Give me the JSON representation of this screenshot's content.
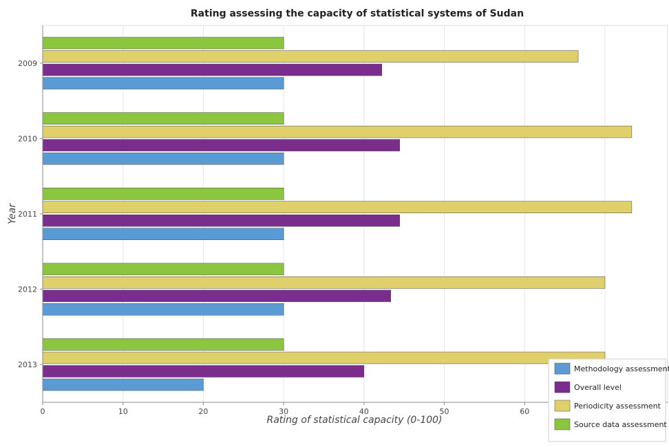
{
  "chart_data": {
    "type": "bar",
    "orientation": "horizontal",
    "title": "Rating assessing the capacity of statistical systems of Sudan",
    "xlabel": "Rating of statistical capacity (0-100)",
    "ylabel": "Year",
    "categories": [
      "2009",
      "2010",
      "2011",
      "2012",
      "2013"
    ],
    "xlim": [
      0,
      77.8
    ],
    "xticks": [
      0,
      10,
      20,
      30,
      40,
      50,
      60,
      70
    ],
    "grid": true,
    "legend_position": "bottom-right",
    "series": [
      {
        "name": "Methodology assessment",
        "color": "#5b9bd5",
        "values": [
          30,
          30,
          30,
          30,
          20
        ]
      },
      {
        "name": "Overall level",
        "color": "#7b2d8e",
        "values": [
          42.2222,
          44.4444,
          44.4444,
          43.3333,
          40
        ]
      },
      {
        "name": "Periodicity assessment",
        "color": "#dfd06c",
        "values": [
          66.6667,
          73.3333,
          73.3333,
          70,
          70
        ]
      },
      {
        "name": "Source data assessment",
        "color": "#8cc63f",
        "values": [
          30,
          30,
          30,
          30,
          30
        ]
      }
    ]
  }
}
